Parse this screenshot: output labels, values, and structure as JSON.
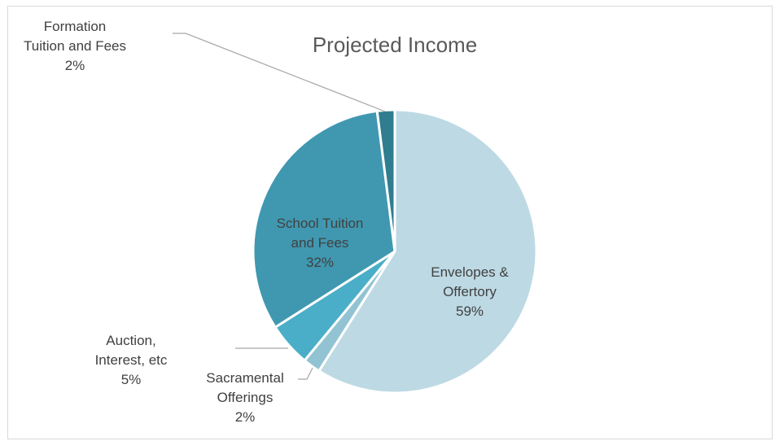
{
  "chart_data": {
    "type": "pie",
    "title": "Projected Income",
    "slices": [
      {
        "name": "Envelopes & Offertory",
        "label_lines": [
          "Envelopes &",
          "Offertory"
        ],
        "value": 59,
        "value_label": "59%",
        "color": "#bdd9e4"
      },
      {
        "name": "Sacramental Offerings",
        "label_lines": [
          "Sacramental",
          "Offerings"
        ],
        "value": 2,
        "value_label": "2%",
        "color": "#92c3d3"
      },
      {
        "name": "Auction, Interest, etc",
        "label_lines": [
          "Auction,",
          "Interest, etc"
        ],
        "value": 5,
        "value_label": "5%",
        "color": "#4aaec8"
      },
      {
        "name": "School Tuition and Fees",
        "label_lines": [
          "School Tuition",
          "and Fees"
        ],
        "value": 32,
        "value_label": "32%",
        "color": "#4098b0"
      },
      {
        "name": "Formation Tuition and Fees",
        "label_lines": [
          "Formation",
          "Tuition and Fees"
        ],
        "value": 2,
        "value_label": "2%",
        "color": "#2f7d8f"
      }
    ],
    "start_angle_deg": 0,
    "direction": "clockwise",
    "legend": "none",
    "data_labels": "category name and percentage"
  }
}
